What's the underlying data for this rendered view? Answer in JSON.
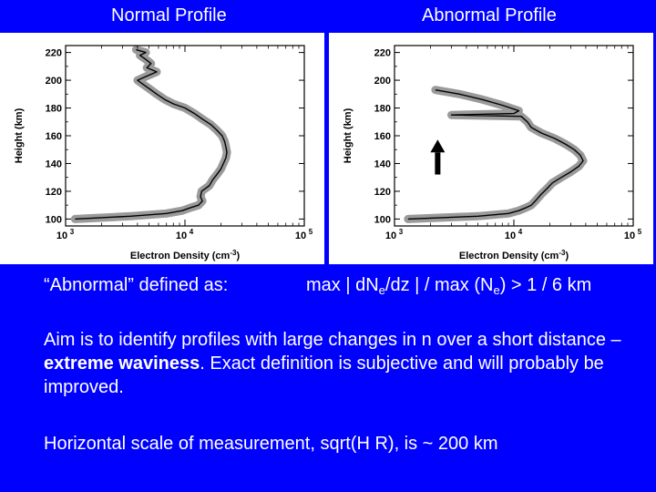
{
  "headers": {
    "left": "Normal Profile",
    "right": "Abnormal Profile"
  },
  "definition": {
    "label": "“Abnormal” defined as:",
    "formula_p1": "max | dN",
    "sub1": "e",
    "formula_p2": "/dz | / max (N",
    "sub2": "e",
    "formula_p3": ") > 1 / 6 km"
  },
  "aim": {
    "part1": "Aim is to identify profiles with large changes in n over a short distance – ",
    "bold": "extreme waviness",
    "part2": ". Exact definition is subjective and will probably be improved."
  },
  "scale_text": "Horizontal scale of measurement, sqrt(H R), is ~ 200 km",
  "colors": {
    "background": "#0000ff",
    "text": "#ffffff",
    "uncertainty": "#9a9a9a",
    "profile": "#000000"
  },
  "chart_data": [
    {
      "type": "line",
      "title": "",
      "xlabel": "Electron Density (cm-3)",
      "ylabel": "Height (km)",
      "xscale": "log",
      "xlim": [
        1000,
        100000
      ],
      "ylim": [
        95,
        225
      ],
      "xticks": [
        "10",
        "10",
        "10"
      ],
      "xtick_exponents": [
        "3",
        "4",
        "5"
      ],
      "yticks": [
        "100",
        "120",
        "140",
        "160",
        "180",
        "200",
        "220"
      ],
      "series": [
        {
          "points": [
            [
              1200,
              100
            ],
            [
              3500,
              102
            ],
            [
              7000,
              104
            ],
            [
              9500,
              106
            ],
            [
              11000,
              108
            ],
            [
              13000,
              110
            ],
            [
              14000,
              113
            ],
            [
              13500,
              116
            ],
            [
              13800,
              120
            ],
            [
              16000,
              124
            ],
            [
              17000,
              128
            ],
            [
              18500,
              132
            ],
            [
              20000,
              136
            ],
            [
              21000,
              140
            ],
            [
              22000,
              144
            ],
            [
              22500,
              148
            ],
            [
              22000,
              152
            ],
            [
              21500,
              156
            ],
            [
              20500,
              160
            ],
            [
              18500,
              164
            ],
            [
              16500,
              168
            ],
            [
              14000,
              172
            ],
            [
              12000,
              176
            ],
            [
              10000,
              180
            ],
            [
              8000,
              183
            ],
            [
              6800,
              186
            ],
            [
              5800,
              190
            ],
            [
              5000,
              194
            ],
            [
              4300,
              198
            ],
            [
              4000,
              200
            ],
            [
              4800,
              203
            ],
            [
              5800,
              206
            ],
            [
              4800,
              209
            ],
            [
              5200,
              212
            ],
            [
              4700,
              215
            ],
            [
              4200,
              218
            ],
            [
              4700,
              220
            ],
            [
              3900,
              222
            ]
          ]
        }
      ]
    },
    {
      "type": "line",
      "title": "",
      "xlabel": "Electron Density (cm-3)",
      "ylabel": "Height (km)",
      "xscale": "log",
      "xlim": [
        1000,
        100000
      ],
      "ylim": [
        95,
        225
      ],
      "xticks": [
        "10",
        "10",
        "10"
      ],
      "xtick_exponents": [
        "3",
        "4",
        "5"
      ],
      "yticks": [
        "100",
        "120",
        "140",
        "160",
        "180",
        "200",
        "220"
      ],
      "series": [
        {
          "points": [
            [
              1300,
              100
            ],
            [
              5000,
              102
            ],
            [
              9000,
              104
            ],
            [
              11000,
              106
            ],
            [
              12500,
              108
            ],
            [
              14000,
              110
            ],
            [
              15500,
              114
            ],
            [
              17000,
              118
            ],
            [
              19000,
              122
            ],
            [
              21000,
              126
            ],
            [
              25000,
              130
            ],
            [
              30000,
              134
            ],
            [
              35000,
              138
            ],
            [
              38000,
              142
            ],
            [
              36000,
              146
            ],
            [
              32000,
              150
            ],
            [
              27000,
              154
            ],
            [
              22000,
              158
            ],
            [
              17000,
              162
            ],
            [
              14000,
              166
            ],
            [
              13000,
              170
            ],
            [
              11500,
              174
            ],
            [
              3000,
              175
            ],
            [
              10000,
              176
            ],
            [
              11000,
              178
            ],
            [
              8000,
              182
            ],
            [
              5500,
              186
            ],
            [
              3500,
              190
            ],
            [
              2200,
              193
            ]
          ]
        }
      ]
    }
  ]
}
